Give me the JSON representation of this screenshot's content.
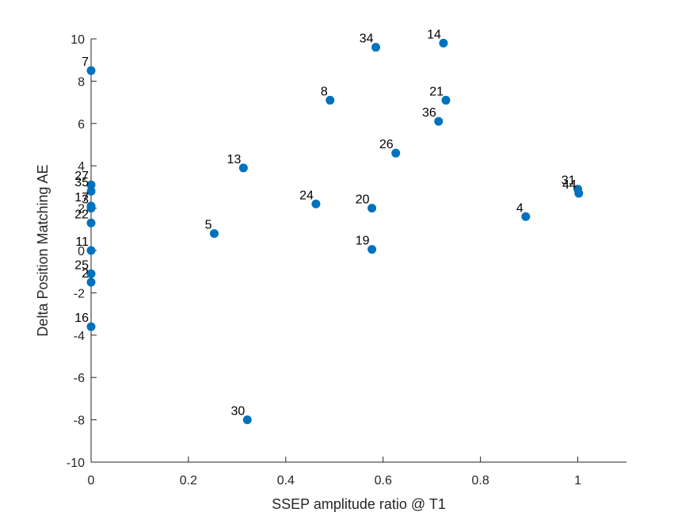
{
  "chart_data": {
    "type": "scatter",
    "xlabel": "SSEP amplitude ratio @ T1",
    "ylabel": "Delta Position Matching AE",
    "xlim": [
      0,
      1.1
    ],
    "ylim": [
      -10,
      10
    ],
    "xticks": [
      0,
      0.2,
      0.4,
      0.6,
      0.8,
      1
    ],
    "xtick_labels": [
      "0",
      "0.2",
      "0.4",
      "0.6",
      "0.8",
      "1"
    ],
    "yticks": [
      -10,
      -8,
      -6,
      -4,
      -2,
      0,
      2,
      4,
      6,
      8,
      10
    ],
    "ytick_labels": [
      "-10",
      "-8",
      "-6",
      "-4",
      "-2",
      "0",
      "2",
      "4",
      "6",
      "8",
      "10"
    ],
    "grid": false,
    "marker_color": "#0072BD",
    "points": [
      {
        "label": "7",
        "x": 0.0,
        "y": 8.5
      },
      {
        "label": "27",
        "x": 0.0,
        "y": 3.1
      },
      {
        "label": "35",
        "x": 0.0,
        "y": 2.8
      },
      {
        "label": "17",
        "x": 0.0,
        "y": 2.1
      },
      {
        "label": "3",
        "x": 0.0,
        "y": 2.0
      },
      {
        "label": "22",
        "x": 0.0,
        "y": 1.3
      },
      {
        "label": "11",
        "x": 0.0,
        "y": 0.0
      },
      {
        "label": "25",
        "x": 0.0,
        "y": -1.1
      },
      {
        "label": "2",
        "x": 0.0,
        "y": -1.5
      },
      {
        "label": "16",
        "x": 0.0,
        "y": -3.6
      },
      {
        "label": "5",
        "x": 0.253,
        "y": 0.8
      },
      {
        "label": "13",
        "x": 0.313,
        "y": 3.9
      },
      {
        "label": "30",
        "x": 0.321,
        "y": -8.0
      },
      {
        "label": "24",
        "x": 0.462,
        "y": 2.2
      },
      {
        "label": "8",
        "x": 0.491,
        "y": 7.1
      },
      {
        "label": "20",
        "x": 0.577,
        "y": 2.0
      },
      {
        "label": "19",
        "x": 0.577,
        "y": 0.05
      },
      {
        "label": "34",
        "x": 0.585,
        "y": 9.6
      },
      {
        "label": "26",
        "x": 0.626,
        "y": 4.6
      },
      {
        "label": "36",
        "x": 0.714,
        "y": 6.1
      },
      {
        "label": "14",
        "x": 0.724,
        "y": 9.8
      },
      {
        "label": "21",
        "x": 0.729,
        "y": 7.1
      },
      {
        "label": "4",
        "x": 0.893,
        "y": 1.6
      },
      {
        "label": "31",
        "x": 1.0,
        "y": 2.9
      },
      {
        "label": "44",
        "x": 1.002,
        "y": 2.7
      }
    ]
  }
}
